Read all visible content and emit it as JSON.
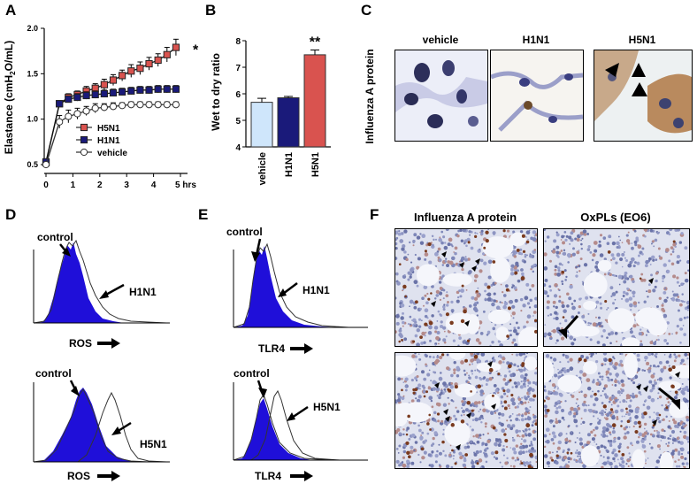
{
  "panels": {
    "A": "A",
    "B": "B",
    "C": "C",
    "D": "D",
    "E": "E",
    "F": "F"
  },
  "chart_a": {
    "type": "line",
    "ylabel": "Elastance (cmH2O/mL)",
    "ylabel_main": "Elastance (cmH",
    "ylabel_sub": "2",
    "ylabel_tail": "O/mL)",
    "yticks": [
      "0.5",
      "1.0",
      "1.5",
      "2.0"
    ],
    "xticks": [
      "0",
      "1",
      "2",
      "3",
      "4",
      "5 hrs"
    ],
    "ylim": [
      0.5,
      2.0
    ],
    "xlim": [
      0,
      5
    ],
    "significance": "*",
    "series": [
      {
        "name": "H5N1",
        "color": "#d9534f",
        "x": [
          0,
          0.5,
          0.833,
          1.167,
          1.5,
          1.833,
          2.167,
          2.5,
          2.833,
          3.167,
          3.5,
          3.833,
          4.167,
          4.5,
          4.833
        ],
        "y": [
          0.52,
          1.17,
          1.24,
          1.27,
          1.31,
          1.34,
          1.38,
          1.43,
          1.48,
          1.53,
          1.56,
          1.61,
          1.65,
          1.71,
          1.79
        ],
        "err": [
          0.02,
          0.03,
          0.04,
          0.04,
          0.05,
          0.05,
          0.06,
          0.06,
          0.06,
          0.07,
          0.07,
          0.07,
          0.07,
          0.08,
          0.09
        ]
      },
      {
        "name": "H1N1",
        "color": "#1a1a7a",
        "x": [
          0,
          0.5,
          0.833,
          1.167,
          1.5,
          1.833,
          2.167,
          2.5,
          2.833,
          3.167,
          3.5,
          3.833,
          4.167,
          4.5,
          4.833
        ],
        "y": [
          0.53,
          1.17,
          1.22,
          1.24,
          1.26,
          1.27,
          1.28,
          1.29,
          1.3,
          1.31,
          1.32,
          1.32,
          1.33,
          1.33,
          1.33
        ],
        "err": [
          0.02,
          0.03,
          0.03,
          0.04,
          0.04,
          0.04,
          0.04,
          0.04,
          0.04,
          0.04,
          0.04,
          0.04,
          0.04,
          0.04,
          0.04
        ]
      },
      {
        "name": "vehicle",
        "color": "#ffffff",
        "x": [
          0,
          0.5,
          0.833,
          1.167,
          1.5,
          1.833,
          2.167,
          2.5,
          2.833,
          3.167,
          3.5,
          3.833,
          4.167,
          4.5,
          4.833
        ],
        "y": [
          0.5,
          0.97,
          1.03,
          1.06,
          1.09,
          1.12,
          1.13,
          1.14,
          1.15,
          1.16,
          1.16,
          1.16,
          1.16,
          1.16,
          1.16
        ],
        "err": [
          0.02,
          0.07,
          0.07,
          0.06,
          0.05,
          0.05,
          0.04,
          0.04,
          0.03,
          0.03,
          0.03,
          0.03,
          0.03,
          0.03,
          0.03
        ]
      }
    ]
  },
  "chart_b": {
    "type": "bar",
    "ylabel": "Wet to dry ratio",
    "yticks": [
      "4",
      "5",
      "6",
      "7",
      "8"
    ],
    "ylim": [
      4,
      8
    ],
    "categories": [
      "vehicle",
      "H1N1",
      "H5N1"
    ],
    "values": [
      5.68,
      5.85,
      7.47
    ],
    "errors": [
      0.15,
      0.05,
      0.18
    ],
    "colors": [
      "#cfe6fb",
      "#1a1a7a",
      "#d9534f"
    ],
    "significance": "**"
  },
  "panel_c": {
    "side_label": "Influenza A protein",
    "titles": [
      "vehicle",
      "H1N1",
      "H5N1"
    ]
  },
  "panel_d": {
    "top": {
      "control": "control",
      "virus": "H1N1",
      "axis": "ROS"
    },
    "bottom": {
      "control": "control",
      "virus": "H5N1",
      "axis": "ROS"
    }
  },
  "panel_e": {
    "top": {
      "control": "control",
      "virus": "H1N1",
      "axis": "TLR4"
    },
    "bottom": {
      "control": "control",
      "virus": "H5N1",
      "axis": "TLR4"
    }
  },
  "panel_f": {
    "titles": [
      "Influenza A protein",
      "OxPLs (EO6)"
    ]
  }
}
